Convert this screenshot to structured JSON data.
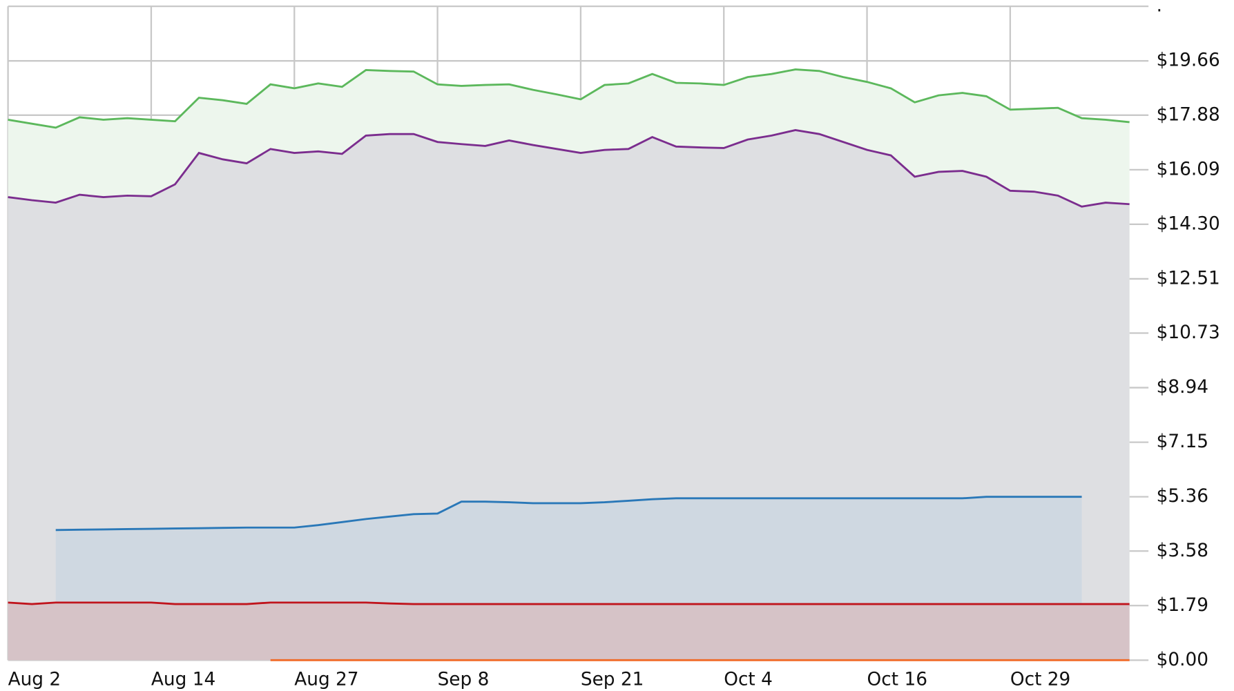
{
  "chart_data": {
    "type": "area",
    "categories": [
      "Aug 2",
      null,
      null,
      null,
      null,
      null,
      "Aug 14",
      null,
      null,
      null,
      null,
      null,
      "Aug 27",
      null,
      null,
      null,
      null,
      null,
      "Sep 8",
      null,
      null,
      null,
      null,
      null,
      "Sep 21",
      null,
      null,
      null,
      null,
      null,
      "Oct 4",
      null,
      null,
      null,
      null,
      null,
      "Oct 16",
      null,
      null,
      null,
      null,
      null,
      "Oct 29",
      null,
      null,
      null,
      null,
      null
    ],
    "series": [
      {
        "color": "#5cb85c",
        "fill": "#edf6ed",
        "values": [
          17.73,
          17.6,
          17.47,
          17.81,
          17.73,
          17.78,
          17.73,
          17.68,
          18.45,
          18.37,
          18.25,
          18.89,
          18.76,
          18.92,
          18.81,
          19.36,
          19.33,
          19.31,
          18.89,
          18.84,
          18.87,
          18.89,
          18.71,
          18.56,
          18.4,
          18.87,
          18.92,
          19.23,
          18.94,
          18.92,
          18.87,
          19.13,
          19.23,
          19.38,
          19.33,
          19.13,
          18.97,
          18.76,
          18.3,
          18.53,
          18.61,
          18.5,
          18.06,
          18.09,
          18.12,
          17.78,
          17.73,
          17.65
        ]
      },
      {
        "color": "#7b2d8e",
        "fill": "#dedfe2",
        "values": [
          15.19,
          15.09,
          15.01,
          15.27,
          15.19,
          15.24,
          15.22,
          15.61,
          16.64,
          16.43,
          16.3,
          16.77,
          16.64,
          16.69,
          16.61,
          17.21,
          17.26,
          17.26,
          17.0,
          16.93,
          16.87,
          17.05,
          16.9,
          16.77,
          16.64,
          16.74,
          16.77,
          17.16,
          16.85,
          16.82,
          16.8,
          17.08,
          17.21,
          17.39,
          17.26,
          17.0,
          16.74,
          16.56,
          15.86,
          16.02,
          16.05,
          15.86,
          15.4,
          15.37,
          15.24,
          14.88,
          15.01,
          14.96
        ]
      },
      {
        "color": "#2a78b8",
        "fill": "#cfd8e1",
        "values": [
          null,
          null,
          4.27,
          4.28,
          4.29,
          4.3,
          4.31,
          4.32,
          4.33,
          4.34,
          4.35,
          4.35,
          4.35,
          4.43,
          4.53,
          4.63,
          4.71,
          4.79,
          4.81,
          5.2,
          5.2,
          5.18,
          5.15,
          5.15,
          5.15,
          5.18,
          5.23,
          5.28,
          5.31,
          5.31,
          5.31,
          5.31,
          5.31,
          5.31,
          5.31,
          5.31,
          5.31,
          5.31,
          5.31,
          5.31,
          5.31,
          5.36,
          5.36,
          5.36,
          5.36,
          5.36,
          null,
          null
        ]
      },
      {
        "color": "#c0141c",
        "fill": "#d6c3c7",
        "values": [
          1.89,
          1.84,
          1.89,
          1.89,
          1.89,
          1.89,
          1.89,
          1.84,
          1.84,
          1.84,
          1.84,
          1.89,
          1.89,
          1.89,
          1.89,
          1.89,
          1.86,
          1.84,
          1.84,
          1.84,
          1.84,
          1.84,
          1.84,
          1.84,
          1.84,
          1.84,
          1.84,
          1.84,
          1.84,
          1.84,
          1.84,
          1.84,
          1.84,
          1.84,
          1.84,
          1.84,
          1.84,
          1.84,
          1.84,
          1.84,
          1.84,
          1.84,
          1.84,
          1.84,
          1.84,
          1.84,
          1.84,
          1.84
        ]
      },
      {
        "color": "#f06a28",
        "fill": "#f3c9b5",
        "values": [
          null,
          null,
          null,
          null,
          null,
          null,
          null,
          null,
          null,
          null,
          null,
          0,
          0,
          0,
          0,
          0,
          0,
          0,
          0,
          0,
          0,
          0,
          0,
          0,
          0,
          0,
          0,
          0,
          0,
          0,
          0,
          0,
          0,
          0,
          0,
          0,
          0,
          0,
          0,
          0,
          0,
          0,
          0,
          0,
          0,
          0,
          0,
          0
        ]
      }
    ],
    "ylim": [
      0,
      21.45
    ],
    "yticks": [
      {
        "value": 0,
        "label": "$0.00"
      },
      {
        "value": 1.79,
        "label": "$1.79"
      },
      {
        "value": 3.58,
        "label": "$3.58"
      },
      {
        "value": 5.36,
        "label": "$5.36"
      },
      {
        "value": 7.15,
        "label": "$7.15"
      },
      {
        "value": 8.94,
        "label": "$8.94"
      },
      {
        "value": 10.73,
        "label": "$10.73"
      },
      {
        "value": 12.51,
        "label": "$12.51"
      },
      {
        "value": 14.3,
        "label": "$14.30"
      },
      {
        "value": 16.09,
        "label": "$16.09"
      },
      {
        "value": 17.88,
        "label": "$17.88"
      },
      {
        "value": 19.66,
        "label": "$19.66"
      },
      {
        "value": 21.45,
        "label": "."
      }
    ],
    "grid": true
  }
}
